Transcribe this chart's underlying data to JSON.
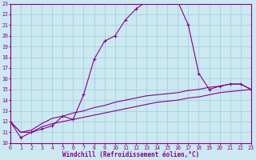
{
  "xlabel": "Windchill (Refroidissement éolien,°C)",
  "bg_color": "#cce8f0",
  "grid_color": "#99cce0",
  "line_color": "#880088",
  "spine_color": "#880088",
  "xmin": 0,
  "xmax": 23,
  "ymin": 10,
  "ymax": 23,
  "line1_x": [
    0,
    1,
    2,
    3,
    4,
    5,
    6,
    7,
    8,
    9,
    10,
    11,
    12,
    13,
    14,
    15,
    16,
    17,
    18,
    19,
    20,
    21,
    22,
    23
  ],
  "line1_y": [
    12.0,
    10.5,
    11.0,
    11.3,
    11.6,
    12.5,
    12.2,
    14.5,
    17.8,
    19.5,
    20.0,
    21.5,
    22.5,
    23.2,
    23.5,
    23.5,
    23.2,
    21.0,
    16.5,
    15.0,
    15.3,
    15.5,
    15.5,
    15.0
  ],
  "line2_x": [
    0,
    1,
    2,
    3,
    4,
    5,
    6,
    7,
    8,
    9,
    10,
    11,
    12,
    13,
    14,
    15,
    16,
    17,
    18,
    19,
    20,
    21,
    22,
    23
  ],
  "line2_y": [
    12.0,
    11.0,
    11.2,
    11.8,
    12.3,
    12.5,
    12.8,
    13.0,
    13.3,
    13.5,
    13.8,
    14.0,
    14.2,
    14.4,
    14.5,
    14.6,
    14.7,
    14.9,
    15.0,
    15.2,
    15.3,
    15.5,
    15.5,
    15.0
  ],
  "line3_x": [
    0,
    1,
    2,
    3,
    4,
    5,
    6,
    7,
    8,
    9,
    10,
    11,
    12,
    13,
    14,
    15,
    16,
    17,
    18,
    19,
    20,
    21,
    22,
    23
  ],
  "line3_y": [
    12.0,
    11.0,
    11.0,
    11.5,
    11.8,
    12.0,
    12.2,
    12.4,
    12.6,
    12.8,
    13.0,
    13.2,
    13.4,
    13.6,
    13.8,
    13.9,
    14.0,
    14.2,
    14.3,
    14.5,
    14.7,
    14.8,
    14.9,
    15.0
  ],
  "xtick_labels": [
    "0",
    "1",
    "2",
    "3",
    "4",
    "5",
    "6",
    "7",
    "8",
    "9",
    "10",
    "11",
    "12",
    "13",
    "14",
    "15",
    "16",
    "17",
    "18",
    "19",
    "20",
    "21",
    "22",
    "23"
  ],
  "ytick_labels": [
    "10",
    "11",
    "12",
    "13",
    "14",
    "15",
    "16",
    "17",
    "18",
    "19",
    "20",
    "21",
    "22",
    "23"
  ],
  "xlabel_fontsize": 5.5,
  "tick_fontsize": 4.8
}
